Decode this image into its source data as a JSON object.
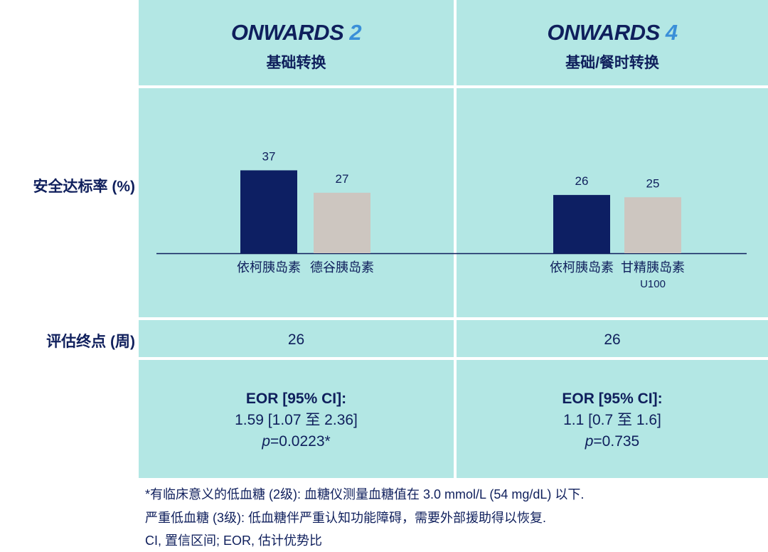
{
  "columns": [
    {
      "title_word": "ONWARDS",
      "title_num": "2",
      "subtitle": "基础转换"
    },
    {
      "title_word": "ONWARDS",
      "title_num": "4",
      "subtitle": "基础/餐时转换"
    }
  ],
  "row_labels": {
    "rate": "安全达标率 (%)",
    "endpoint": "评估终点 (周)"
  },
  "endpoints": [
    "26",
    "26"
  ],
  "eor": [
    {
      "label": "EOR [95% CI]:",
      "value": "1.59 [1.07 至 2.36]",
      "p_italic": "p",
      "p_value": "=0.0223*"
    },
    {
      "label": "EOR [95% CI]:",
      "value": "1.1 [0.7 至 1.6]",
      "p_italic": "p",
      "p_value": "=0.735"
    }
  ],
  "footnotes": [
    "*有临床意义的低血糖 (2级): 血糖仪测量血糖值在 3.0 mmol/L (54 mg/dL) 以下.",
    "严重低血糖 (3级): 低血糖伴严重认知功能障碍，需要外部援助得以恢复.",
    "CI, 置信区间; EOR, 估计优势比"
  ],
  "colors": {
    "panel": "#b3e7e4",
    "navy": "#0f1f5c",
    "bar_dark": "#0d1f63",
    "bar_light": "#cdc6c0",
    "accent_num": "#3a8fd8"
  },
  "chart_data": [
    {
      "type": "bar",
      "title": "ONWARDS 2",
      "ylabel": "安全达标率 (%)",
      "categories": [
        "依柯胰岛素",
        "德谷胰岛素"
      ],
      "values": [
        37,
        27
      ],
      "data_labels": [
        "37",
        "27"
      ],
      "bar_colors": [
        "#0d1f63",
        "#cdc6c0"
      ],
      "ylim": [
        0,
        40
      ],
      "grid": false
    },
    {
      "type": "bar",
      "title": "ONWARDS 4",
      "ylabel": "安全达标率 (%)",
      "categories": [
        "依柯胰岛素",
        "甘精胰岛素\nU100"
      ],
      "values": [
        26,
        25
      ],
      "data_labels": [
        "26",
        "25"
      ],
      "bar_colors": [
        "#0d1f63",
        "#cdc6c0"
      ],
      "ylim": [
        0,
        40
      ],
      "grid": false
    }
  ]
}
